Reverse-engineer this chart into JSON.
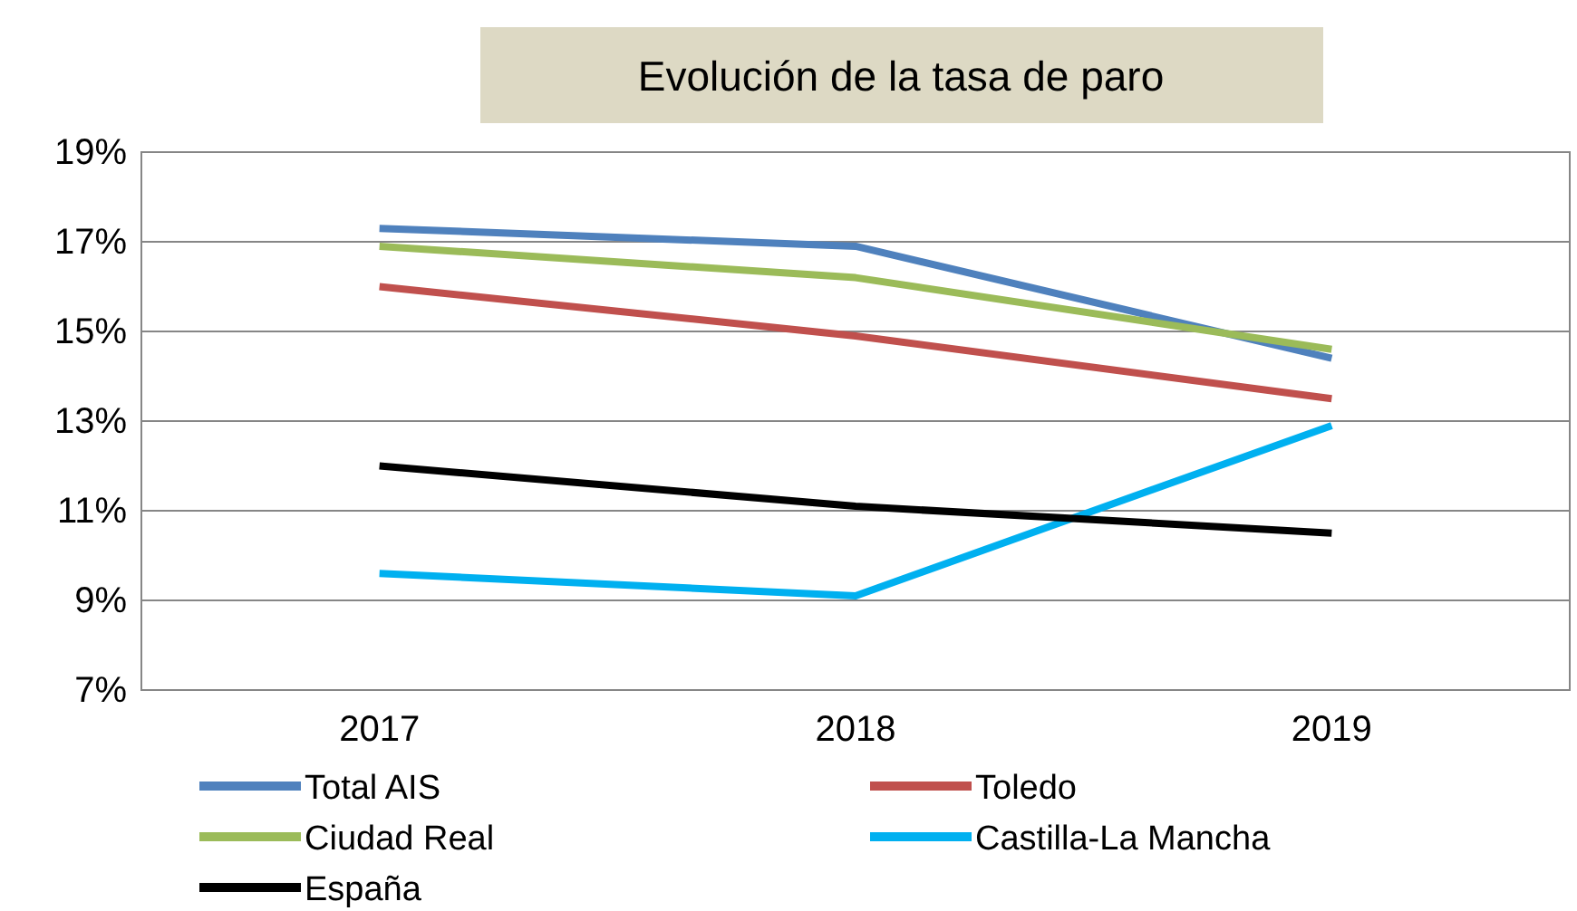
{
  "chart_data": {
    "type": "line",
    "title": "Evolución de la tasa  de paro",
    "categories": [
      "2017",
      "2018",
      "2019"
    ],
    "series": [
      {
        "name": "Total AIS",
        "color": "#4f81bd",
        "values": [
          17.3,
          16.9,
          14.4
        ]
      },
      {
        "name": "Toledo",
        "color": "#c0504d",
        "values": [
          16.0,
          14.9,
          13.5
        ]
      },
      {
        "name": "Ciudad Real",
        "color": "#9bbb59",
        "values": [
          16.9,
          16.2,
          14.6
        ]
      },
      {
        "name": "Castilla-La Mancha",
        "color": "#00b0f0",
        "values": [
          9.6,
          9.1,
          12.9
        ]
      },
      {
        "name": "España",
        "color": "#000000",
        "values": [
          12.0,
          11.1,
          10.5
        ]
      }
    ],
    "ylim": [
      7,
      19
    ],
    "yticks": [
      {
        "value": 7,
        "label": "7%"
      },
      {
        "value": 9,
        "label": "9%"
      },
      {
        "value": 11,
        "label": "11%"
      },
      {
        "value": 13,
        "label": "13%"
      },
      {
        "value": 15,
        "label": "15%"
      },
      {
        "value": 17,
        "label": "17%"
      },
      {
        "value": 19,
        "label": "19%"
      }
    ],
    "grid": "y",
    "legend": "bottom",
    "marker": "none",
    "line_style": "solid"
  }
}
